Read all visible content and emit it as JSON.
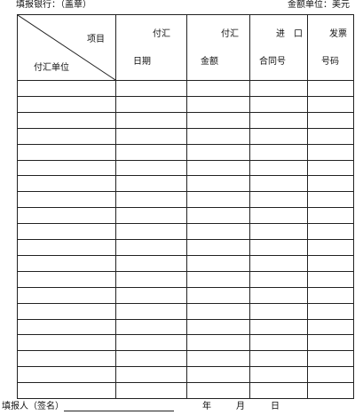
{
  "header": {
    "bank_label": "填报银行：（盖章）",
    "unit_label": "金额单位：美元"
  },
  "table": {
    "diag_top": "项目",
    "diag_bottom": "付汇单位",
    "columns": [
      {
        "line1": "付汇",
        "line2": "日期"
      },
      {
        "line1": "付汇",
        "line2": "金额"
      },
      {
        "line1": "进　口",
        "line2": "合同号"
      },
      {
        "line1": "发票",
        "line2": "号码"
      }
    ],
    "body_rows": 20
  },
  "footer": {
    "reporter_label": "填报人（签名）",
    "year": "年",
    "month": "月",
    "day": "日"
  }
}
